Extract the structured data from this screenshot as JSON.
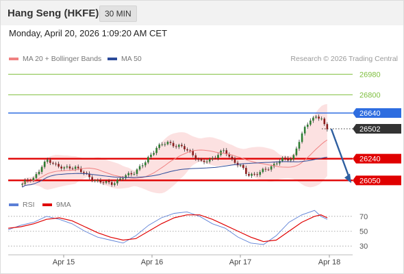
{
  "header": {
    "title": "Hang Seng (HKFE)",
    "timeframe": "30 MIN"
  },
  "timestamp": "Monday, April 20, 2026 1:09:20 AM CET",
  "legend": {
    "ma20": {
      "label": "MA 20 + Bollinger Bands",
      "color": "#f08080"
    },
    "ma50": {
      "label": "MA 50",
      "color": "#2b4a99"
    },
    "rsi": {
      "label": "RSI",
      "color": "#5b7fd6"
    },
    "rsi_ma": {
      "label": "9MA",
      "color": "#e00000"
    }
  },
  "credit": "Research © 2026 Trading Central",
  "chart_data": [
    {
      "type": "candlestick",
      "title": "Hang Seng (HKFE)",
      "timeframe": "30 MIN",
      "ylim": [
        25920,
        27060
      ],
      "x_ticks": [
        "Apr 15",
        "Apr 16",
        "Apr 17",
        "Apr 18"
      ],
      "price_points": [
        [
          "2026-04-15T01:00",
          26020
        ],
        [
          "2026-04-15T05:00",
          26070
        ],
        [
          "2026-04-15T08:00",
          26180
        ],
        [
          "2026-04-15T10:00",
          26220
        ],
        [
          "2026-04-15T12:00",
          26200
        ],
        [
          "2026-04-15T16:00",
          26150
        ],
        [
          "2026-04-15T20:00",
          26170
        ],
        [
          "2026-04-16T00:00",
          26080
        ],
        [
          "2026-04-16T04:00",
          26040
        ],
        [
          "2026-04-16T08:00",
          26020
        ],
        [
          "2026-04-16T12:00",
          26070
        ],
        [
          "2026-04-16T16:00",
          26120
        ],
        [
          "2026-04-16T20:00",
          26200
        ],
        [
          "2026-04-17T00:00",
          26340
        ],
        [
          "2026-04-17T04:00",
          26380
        ],
        [
          "2026-04-17T08:00",
          26350
        ],
        [
          "2026-04-17T12:00",
          26300
        ],
        [
          "2026-04-17T16:00",
          26200
        ],
        [
          "2026-04-17T20:00",
          26250
        ],
        [
          "2026-04-18T00:00",
          26310
        ],
        [
          "2026-04-18T02:00",
          26250
        ],
        [
          "2026-04-18T06:00",
          26160
        ],
        [
          "2026-04-18T08:00",
          26100
        ],
        [
          "2026-04-18T12:00",
          26110
        ],
        [
          "2026-04-18T16:00",
          26170
        ],
        [
          "2026-04-18T20:00",
          26230
        ],
        [
          "2026-04-19T00:00",
          26250
        ],
        [
          "2026-04-19T02:00",
          26380
        ],
        [
          "2026-04-19T04:00",
          26500
        ],
        [
          "2026-04-19T06:00",
          26590
        ],
        [
          "2026-04-19T08:00",
          26600
        ],
        [
          "2026-04-19T10:00",
          26590
        ],
        [
          "2026-04-19T11:00",
          26530
        ],
        [
          "2026-04-19T12:00",
          26502
        ]
      ],
      "levels": [
        {
          "value": 26980,
          "label": "26980",
          "style": "resistance",
          "color": "#7fbf3f"
        },
        {
          "value": 26800,
          "label": "26800",
          "style": "resistance",
          "color": "#7fbf3f"
        },
        {
          "value": 26640,
          "label": "26640",
          "style": "pivot",
          "color": "#2e6de0"
        },
        {
          "value": 26502,
          "label": "26502",
          "style": "last",
          "color": "#333333"
        },
        {
          "value": 26240,
          "label": "26240",
          "style": "support",
          "color": "#e00000"
        },
        {
          "value": 26050,
          "label": "26050",
          "style": "support",
          "color": "#e00000"
        }
      ],
      "forecast_arrow": {
        "from": 26500,
        "to": 26050,
        "direction": "down",
        "color": "#2e5fa0"
      },
      "series": [
        {
          "name": "MA 20 + Bollinger Bands",
          "color": "#f08080"
        },
        {
          "name": "MA 50",
          "color": "#2b4a99"
        }
      ]
    },
    {
      "type": "line",
      "ylim": [
        20,
        80
      ],
      "y_ticks": [
        70,
        50,
        30
      ],
      "series": [
        {
          "name": "RSI",
          "color": "#5b7fd6",
          "points": [
            [
              0,
              52
            ],
            [
              8,
              58
            ],
            [
              16,
              62
            ],
            [
              24,
              70
            ],
            [
              32,
              66
            ],
            [
              40,
              60
            ],
            [
              48,
              50
            ],
            [
              56,
              42
            ],
            [
              64,
              38
            ],
            [
              72,
              34
            ],
            [
              80,
              44
            ],
            [
              88,
              58
            ],
            [
              96,
              68
            ],
            [
              104,
              74
            ],
            [
              112,
              76
            ],
            [
              120,
              70
            ],
            [
              128,
              60
            ],
            [
              136,
              54
            ],
            [
              144,
              42
            ],
            [
              152,
              34
            ],
            [
              160,
              32
            ],
            [
              168,
              44
            ],
            [
              176,
              62
            ],
            [
              184,
              72
            ],
            [
              192,
              78
            ],
            [
              196,
              70
            ],
            [
              200,
              66
            ]
          ]
        },
        {
          "name": "9MA",
          "color": "#e00000",
          "points": [
            [
              0,
              54
            ],
            [
              8,
              56
            ],
            [
              16,
              60
            ],
            [
              24,
              66
            ],
            [
              32,
              68
            ],
            [
              40,
              64
            ],
            [
              48,
              56
            ],
            [
              56,
              48
            ],
            [
              64,
              42
            ],
            [
              72,
              38
            ],
            [
              80,
              40
            ],
            [
              88,
              50
            ],
            [
              96,
              60
            ],
            [
              104,
              68
            ],
            [
              112,
              72
            ],
            [
              120,
              72
            ],
            [
              128,
              66
            ],
            [
              136,
              58
            ],
            [
              144,
              50
            ],
            [
              152,
              42
            ],
            [
              160,
              36
            ],
            [
              168,
              38
            ],
            [
              176,
              50
            ],
            [
              184,
              62
            ],
            [
              192,
              70
            ],
            [
              196,
              72
            ],
            [
              200,
              68
            ]
          ]
        }
      ]
    }
  ]
}
